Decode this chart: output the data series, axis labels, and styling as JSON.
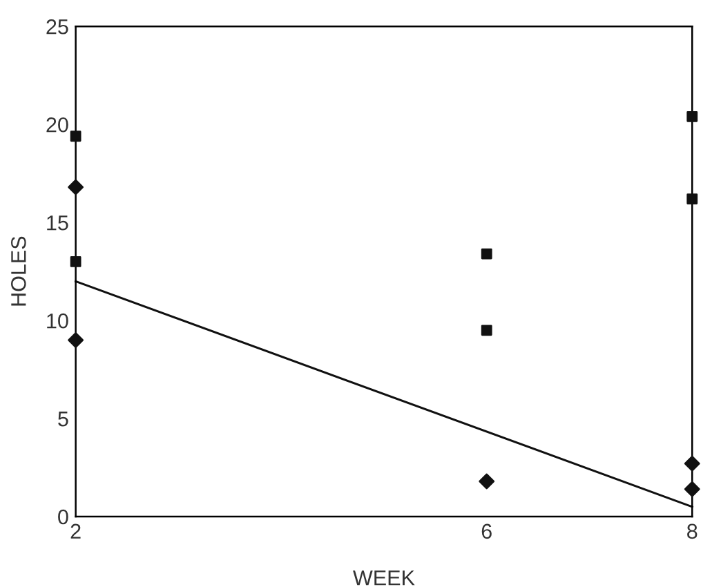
{
  "chart_data": {
    "type": "scatter",
    "xlabel": "WEEK",
    "ylabel": "HOLES",
    "xlim": [
      2,
      8
    ],
    "xticks": [
      2,
      6,
      8
    ],
    "ylim": [
      0,
      25
    ],
    "yticks": [
      0,
      5,
      10,
      15,
      20,
      25
    ],
    "grid": false,
    "series": [
      {
        "marker": "square",
        "color": "#111111",
        "x": [
          2,
          2,
          6,
          6,
          8,
          8
        ],
        "values": [
          19.4,
          13.0,
          13.4,
          9.5,
          20.4,
          16.2
        ]
      },
      {
        "marker": "diamond",
        "color": "#111111",
        "x": [
          2,
          2,
          6,
          8,
          8
        ],
        "values": [
          16.8,
          9.0,
          1.8,
          2.7,
          1.4
        ]
      },
      {
        "type": "line",
        "color": "#111111",
        "x": [
          2,
          8
        ],
        "values": [
          12.0,
          0.5
        ]
      }
    ]
  }
}
